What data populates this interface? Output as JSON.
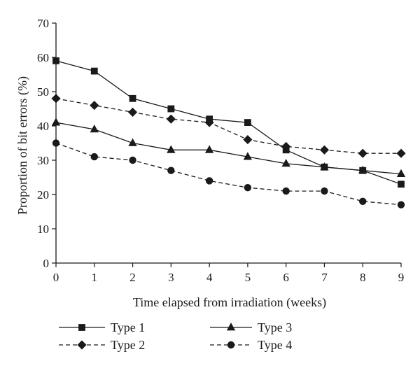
{
  "chart_data": {
    "type": "line",
    "xlabel": "Time elapsed from irradiation (weeks)",
    "ylabel": "Proportion of bit errors (%)",
    "x": [
      0,
      1,
      2,
      3,
      4,
      5,
      6,
      7,
      8,
      9
    ],
    "xticks": [
      "0",
      "1",
      "2",
      "3",
      "4",
      "5",
      "6",
      "7",
      "8",
      "9"
    ],
    "xlim": [
      0,
      9
    ],
    "ylim": [
      0,
      70
    ],
    "yticks": [
      "0",
      "10",
      "20",
      "30",
      "40",
      "50",
      "60",
      "70"
    ],
    "grid": false,
    "legend_position": "bottom",
    "series": [
      {
        "name": "Type 1",
        "marker": "square",
        "line": "solid",
        "color": "#1a1a1a",
        "values": [
          59,
          56,
          48,
          45,
          42,
          41,
          33,
          28,
          27,
          23
        ]
      },
      {
        "name": "Type 2",
        "marker": "diamond",
        "line": "dashed",
        "color": "#1a1a1a",
        "values": [
          48,
          46,
          44,
          42,
          41,
          36,
          34,
          33,
          32,
          32
        ]
      },
      {
        "name": "Type 3",
        "marker": "triangle",
        "line": "solid",
        "color": "#1a1a1a",
        "values": [
          41,
          39,
          35,
          33,
          33,
          31,
          29,
          28,
          27,
          26
        ]
      },
      {
        "name": "Type 4",
        "marker": "circle",
        "line": "dashed",
        "color": "#1a1a1a",
        "values": [
          35,
          31,
          30,
          27,
          24,
          22,
          21,
          21,
          18,
          17
        ]
      }
    ]
  }
}
